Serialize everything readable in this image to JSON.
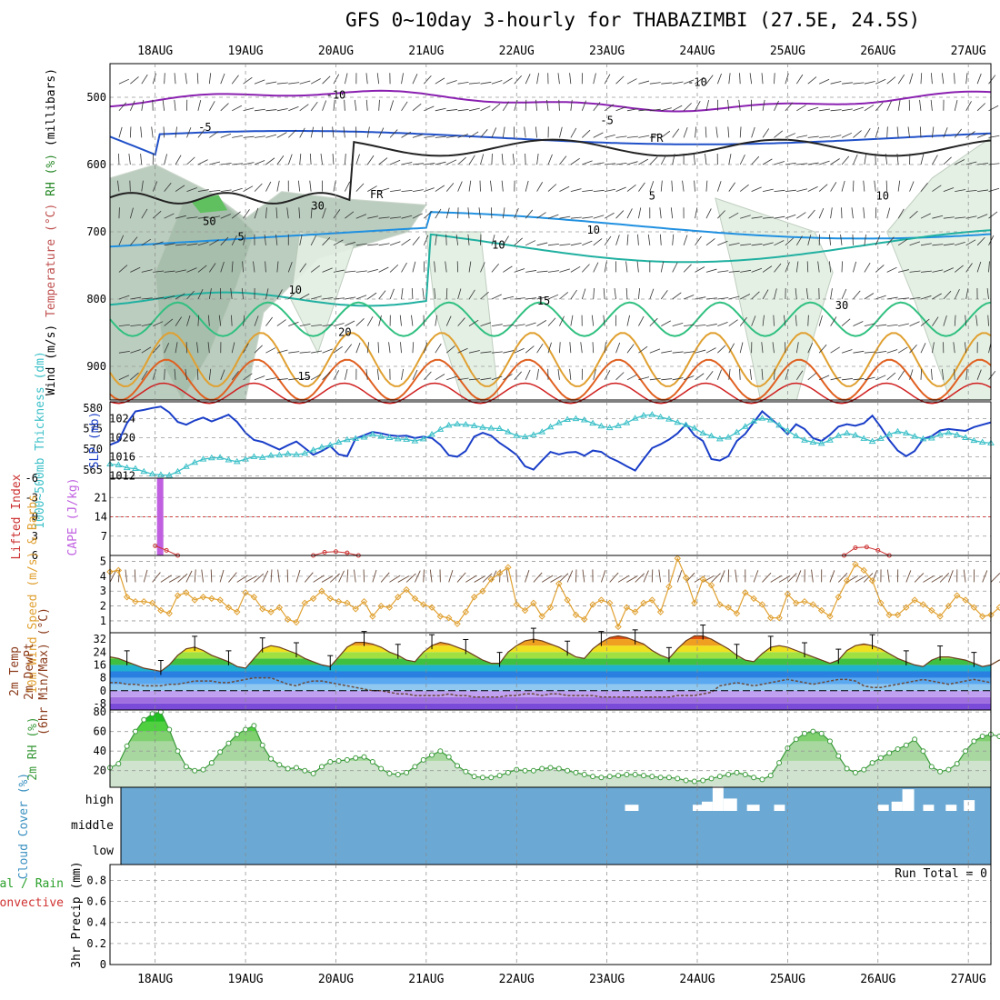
{
  "title": "GFS 0~10day 3-hourly for THABAZIMBI (27.5E, 24.5S)",
  "colors": {
    "cloud_fill": "#6ba9d4",
    "slp": "#1a3ec8",
    "thickness": "#3cc0c8",
    "wind10m": "#e0a030",
    "rh2m": "#3a9a3a",
    "cape_bar": "#c060e0",
    "lifted_index": "#cc3030"
  },
  "chart_data": [
    {
      "type": "time-height",
      "name": "upper-air",
      "ylabel_parts": [
        "Wind (m/s)",
        "Temperature (°C)",
        "RH (%)",
        "(millibars)"
      ],
      "ylim": [
        950,
        450
      ],
      "yticks": [
        500,
        600,
        700,
        800,
        900
      ],
      "dates": [
        "18AUG",
        "19AUG",
        "20AUG",
        "21AUG",
        "22AUG",
        "23AUG",
        "24AUG",
        "25AUG",
        "26AUG",
        "27AUG"
      ],
      "contour_labels": [
        {
          "text": "-10",
          "t": 2.0,
          "p": 502
        },
        {
          "text": "-10",
          "t": 6.0,
          "p": 483
        },
        {
          "text": "-5",
          "t": 0.55,
          "p": 550
        },
        {
          "text": "-5",
          "t": 5.0,
          "p": 540
        },
        {
          "text": "FR",
          "t": 2.45,
          "p": 650
        },
        {
          "text": "FR",
          "t": 5.55,
          "p": 566
        },
        {
          "text": "5",
          "t": 0.95,
          "p": 713
        },
        {
          "text": "5",
          "t": 5.5,
          "p": 652
        },
        {
          "text": "10",
          "t": 1.55,
          "p": 792
        },
        {
          "text": "10",
          "t": 4.85,
          "p": 703
        },
        {
          "text": "15",
          "t": 4.3,
          "p": 808
        },
        {
          "text": "15",
          "t": 1.65,
          "p": 920
        },
        {
          "text": "20",
          "t": 2.1,
          "p": 855
        },
        {
          "text": "30",
          "t": 1.8,
          "p": 667
        },
        {
          "text": "50",
          "t": 0.6,
          "p": 690
        },
        {
          "text": "10",
          "t": 3.8,
          "p": 725
        },
        {
          "text": "10",
          "t": 8.05,
          "p": 652
        },
        {
          "text": "30",
          "t": 7.6,
          "p": 815
        }
      ]
    },
    {
      "type": "line",
      "name": "slp-thickness",
      "ylabel_left": "1000~500mb Thickness (dm)",
      "ylabel_right": "SLP (mb)",
      "yticks_thickness": [
        565,
        570,
        575,
        580
      ],
      "yticks_slp": [
        1012,
        1016,
        1020,
        1024
      ],
      "ylim_slp": [
        1011.5,
        1027.5
      ],
      "ylim_thickness": [
        563.0,
        581.5
      ],
      "slp": [
        1018.5,
        1019.2,
        1023,
        1025.5,
        1025.8,
        1026.2,
        1026.5,
        1025.3,
        1023.3,
        1022.7,
        1023.6,
        1024.2,
        1023.4,
        1024.1,
        1024.8,
        1023.3,
        1021,
        1019.5,
        1019.1,
        1018.3,
        1017.5,
        1018.4,
        1019.2,
        1017.8,
        1016.4,
        1017.2,
        1018.2,
        1016.5,
        1016.1,
        1019.8,
        1020.5,
        1021.2,
        1020.9,
        1020.5,
        1020.3,
        1020.4,
        1019.9,
        1020.2,
        1019.9,
        1018.5,
        1016.3,
        1016.0,
        1017.2,
        1020.2,
        1021,
        1020.4,
        1018.9,
        1017.7,
        1016.4,
        1014.0,
        1013.3,
        1015.2,
        1017.0,
        1016.5,
        1016.9,
        1017.0,
        1016.2,
        1017.3,
        1017.0,
        1015.8,
        1015.0,
        1014.0,
        1013.1,
        1015.5,
        1017.8,
        1018.6,
        1019.6,
        1020.9,
        1022.8,
        1020.5,
        1019.3,
        1015.5,
        1015.2,
        1016.1,
        1019.3,
        1020.8,
        1023.2,
        1025.5,
        1024.0,
        1022.5,
        1020.7,
        1022.8,
        1021.8,
        1019.9,
        1019.3,
        1020.6,
        1022.3,
        1022.8,
        1022.5,
        1023,
        1024.6,
        1022.2,
        1019.5,
        1017.3,
        1016.1,
        1017.2,
        1019.7,
        1020.3,
        1021.5,
        1021.8,
        1021.6,
        1021.4,
        1022.2,
        1022.7,
        1023.2
      ],
      "thickness": [
        566.4,
        566.2,
        565.5,
        565.3,
        564.6,
        564.0,
        563.8,
        563.7,
        564.6,
        565.8,
        566.8,
        567.6,
        567.9,
        568.0,
        567.4,
        567.0,
        567.6,
        568.2,
        568.0,
        568.5,
        568.6,
        568.9,
        568.7,
        569.0,
        569.8,
        570.5,
        571.0,
        571.7,
        572.3,
        572.6,
        572.9,
        573.6,
        573.1,
        572.8,
        572.5,
        572.4,
        572.0,
        572.5,
        573.6,
        574.8,
        575.8,
        576.1,
        576.0,
        575.7,
        575.3,
        575.1,
        575.0,
        574.2,
        573.3,
        573.0,
        573.5,
        574.2,
        575.4,
        576.4,
        577.2,
        577.4,
        577.1,
        576.3,
        575.6,
        575.2,
        575.7,
        576.4,
        577.5,
        578.2,
        578.4,
        577.8,
        577.3,
        576.5,
        575.9,
        575.1,
        573.9,
        573.2,
        572.5,
        572.9,
        574.1,
        575.5,
        576.8,
        577.5,
        577.1,
        575.8,
        574.5,
        573.2,
        572.2,
        571.7,
        571.4,
        572.2,
        573.3,
        573.9,
        573.4,
        572.6,
        571.9,
        572.6,
        573.6,
        574.3,
        573.9,
        573.1,
        572.5,
        572.7,
        573.6,
        574.0,
        573.5,
        572.8,
        572.1,
        571.7,
        571.5
      ]
    },
    {
      "type": "bar",
      "name": "cape-lifted-index",
      "ylabel_left": "Lifted Index",
      "ylabel_right": "CAPE (J/kg)",
      "yticks_li": [
        6,
        3,
        0,
        -3,
        -6
      ],
      "yticks_cape": [
        7,
        14,
        21
      ],
      "ylim_cape": [
        0,
        28
      ],
      "cape_bars": [
        {
          "t": 0.0,
          "value": 28
        }
      ],
      "li_points": [
        {
          "t": 0.0,
          "value": 4.5
        },
        {
          "t": 0.125,
          "value": 5.2
        },
        {
          "t": 0.25,
          "value": 6
        },
        {
          "t": 1.75,
          "value": 6
        },
        {
          "t": 1.875,
          "value": 5.5
        },
        {
          "t": 2.0,
          "value": 5.4
        },
        {
          "t": 2.125,
          "value": 5.6
        },
        {
          "t": 2.25,
          "value": 6
        },
        {
          "t": 7.625,
          "value": 6
        },
        {
          "t": 7.75,
          "value": 4.8
        },
        {
          "t": 7.875,
          "value": 4.7
        },
        {
          "t": 8.0,
          "value": 5.2
        },
        {
          "t": 8.125,
          "value": 6
        }
      ]
    },
    {
      "type": "line",
      "name": "10m-wind",
      "ylabel": "10m Wind Speed (m/s) & Barbs",
      "yticks": [
        1,
        2,
        3,
        4,
        5
      ],
      "ylim": [
        0.2,
        5.4
      ],
      "values": [
        4.3,
        4.4,
        2.6,
        2.3,
        2.3,
        2.2,
        1.7,
        1.5,
        2.7,
        2.9,
        2.4,
        2.6,
        2.5,
        2.4,
        1.9,
        1.6,
        2.9,
        2.6,
        1.8,
        1.6,
        1.9,
        1.1,
        0.9,
        2.2,
        2.5,
        3.0,
        2.5,
        2.3,
        2.2,
        1.8,
        2.3,
        1.3,
        2.0,
        1.9,
        2.6,
        3.1,
        2.5,
        2.1,
        1.9,
        1.3,
        1.2,
        0.8,
        1.6,
        2.6,
        3.0,
        3.8,
        4.2,
        4.6,
        2.1,
        1.7,
        2.2,
        1.3,
        1.9,
        3.5,
        2.4,
        1.4,
        1.1,
        2.1,
        2.4,
        2.2,
        0.6,
        1.9,
        1.6,
        2.2,
        2.4,
        1.6,
        3.3,
        5.2,
        3.9,
        2.2,
        3.8,
        3.4,
        2.1,
        1.9,
        1.5,
        2.9,
        2.5,
        2.1,
        1.2,
        1.2,
        2.8,
        2.2,
        2.3,
        2.1,
        1.7,
        1.3,
        2.6,
        3.7,
        4.8,
        4.4,
        3.7,
        2.2,
        1.4,
        1.4,
        1.9,
        2.4,
        2.1,
        1.7,
        1.3,
        2.0,
        2.7,
        2.4,
        1.9,
        1.3,
        1.4,
        1.9
      ]
    },
    {
      "type": "area",
      "name": "2m-temp",
      "ylabel_parts": [
        "2m Temp",
        "2m DewPt",
        "(6hr Min/Max) (°C)"
      ],
      "yticks": [
        -8,
        0,
        8,
        16,
        24,
        32
      ],
      "ylim": [
        -12,
        36
      ],
      "temp": [
        21,
        20,
        18,
        16,
        14,
        13,
        12,
        16,
        22,
        26,
        27,
        25,
        22,
        20,
        18,
        15,
        14,
        20,
        26,
        28,
        27,
        25,
        23,
        20,
        18,
        16,
        15,
        21,
        27,
        30,
        30,
        29,
        27,
        24,
        22,
        19,
        18,
        24,
        28,
        30,
        29,
        27,
        25,
        22,
        19,
        17,
        17,
        24,
        28,
        31,
        32,
        31,
        29,
        27,
        24,
        21,
        20,
        26,
        30,
        33,
        34,
        33,
        31,
        29,
        25,
        22,
        20,
        26,
        31,
        34,
        34,
        32,
        29,
        26,
        22,
        19,
        18,
        23,
        27,
        28,
        27,
        25,
        23,
        21,
        19,
        17,
        19,
        25,
        28,
        29,
        28,
        26,
        23,
        20,
        18,
        16,
        15,
        19,
        21,
        21,
        20,
        19,
        17,
        15,
        16,
        19,
        20
      ],
      "dewpt": [
        5,
        5,
        4,
        4,
        3,
        3,
        3,
        4,
        4,
        5,
        6,
        6,
        6,
        5,
        5,
        6,
        7,
        8,
        8,
        8,
        6,
        4,
        3,
        5,
        6,
        6,
        5,
        4,
        3,
        2,
        1,
        0,
        0,
        -1,
        -2,
        -2,
        -3,
        -3,
        -3,
        -3,
        -2,
        -3,
        -3,
        -4,
        -4,
        -4,
        -4,
        -3,
        -3,
        -2,
        -2,
        -3,
        -2,
        -2,
        -3,
        -3,
        -3,
        -3,
        -4,
        -4,
        -4,
        -4,
        -4,
        -4,
        -4,
        -4,
        -4,
        -3,
        -3,
        -3,
        -2,
        -1,
        3,
        4,
        5,
        4,
        3,
        4,
        5,
        6,
        7,
        6,
        5,
        4,
        5,
        6,
        7,
        7,
        6,
        3,
        2,
        2,
        3,
        4,
        5,
        6,
        7,
        6,
        5,
        4,
        5,
        6,
        7,
        6,
        5
      ]
    },
    {
      "type": "area",
      "name": "2m-rh",
      "ylabel": "2m RH (%)",
      "yticks": [
        20,
        40,
        60,
        80
      ],
      "ylim": [
        3,
        82
      ],
      "values": [
        23,
        27,
        45,
        60,
        72,
        78,
        80,
        62,
        40,
        24,
        20,
        21,
        28,
        39,
        48,
        57,
        62,
        66,
        46,
        32,
        26,
        22,
        23,
        20,
        17,
        24,
        29,
        30,
        31,
        33,
        34,
        29,
        22,
        17,
        16,
        18,
        24,
        31,
        36,
        40,
        34,
        25,
        19,
        14,
        13,
        13,
        15,
        18,
        21,
        20,
        20,
        22,
        23,
        22,
        20,
        18,
        16,
        14,
        13,
        14,
        15,
        16,
        16,
        15,
        14,
        13,
        13,
        12,
        10,
        9,
        10,
        12,
        14,
        16,
        18,
        16,
        13,
        11,
        15,
        28,
        43,
        52,
        58,
        60,
        58,
        50,
        35,
        22,
        18,
        21,
        28,
        33,
        38,
        42,
        46,
        52,
        40,
        24,
        19,
        21,
        27,
        40,
        50,
        55,
        57,
        55,
        42
      ]
    },
    {
      "type": "heatmap",
      "name": "cloud-cover",
      "ylabel": "Cloud Cover (%)",
      "levels": [
        "high",
        "middle",
        "low"
      ],
      "clear_high": [
        {
          "t": 5.2,
          "len": 0.15,
          "depth": 0.2
        },
        {
          "t": 5.95,
          "len": 0.1,
          "depth": 0.2
        },
        {
          "t": 6.05,
          "len": 0.12,
          "depth": 0.3
        },
        {
          "t": 6.17,
          "len": 0.12,
          "depth": 0.8
        },
        {
          "t": 6.29,
          "len": 0.15,
          "depth": 0.4
        },
        {
          "t": 6.55,
          "len": 0.14,
          "depth": 0.2
        },
        {
          "t": 6.85,
          "len": 0.12,
          "depth": 0.2
        },
        {
          "t": 8.0,
          "len": 0.12,
          "depth": 0.2
        },
        {
          "t": 8.15,
          "len": 0.12,
          "depth": 0.3
        },
        {
          "t": 8.27,
          "len": 0.13,
          "depth": 0.7
        },
        {
          "t": 8.5,
          "len": 0.12,
          "depth": 0.2
        },
        {
          "t": 8.75,
          "len": 0.12,
          "depth": 0.2
        },
        {
          "t": 8.95,
          "len": 0.12,
          "depth": 0.35
        }
      ]
    },
    {
      "type": "bar",
      "name": "precip",
      "ylabel_parts": [
        "Total / Rain",
        "Convective",
        "3hr Precip (mm)"
      ],
      "yticks": [
        0,
        0.2,
        0.4,
        0.6,
        0.8
      ],
      "ylim": [
        0,
        0.95
      ],
      "run_total": "Run Total = 0",
      "values": []
    }
  ]
}
